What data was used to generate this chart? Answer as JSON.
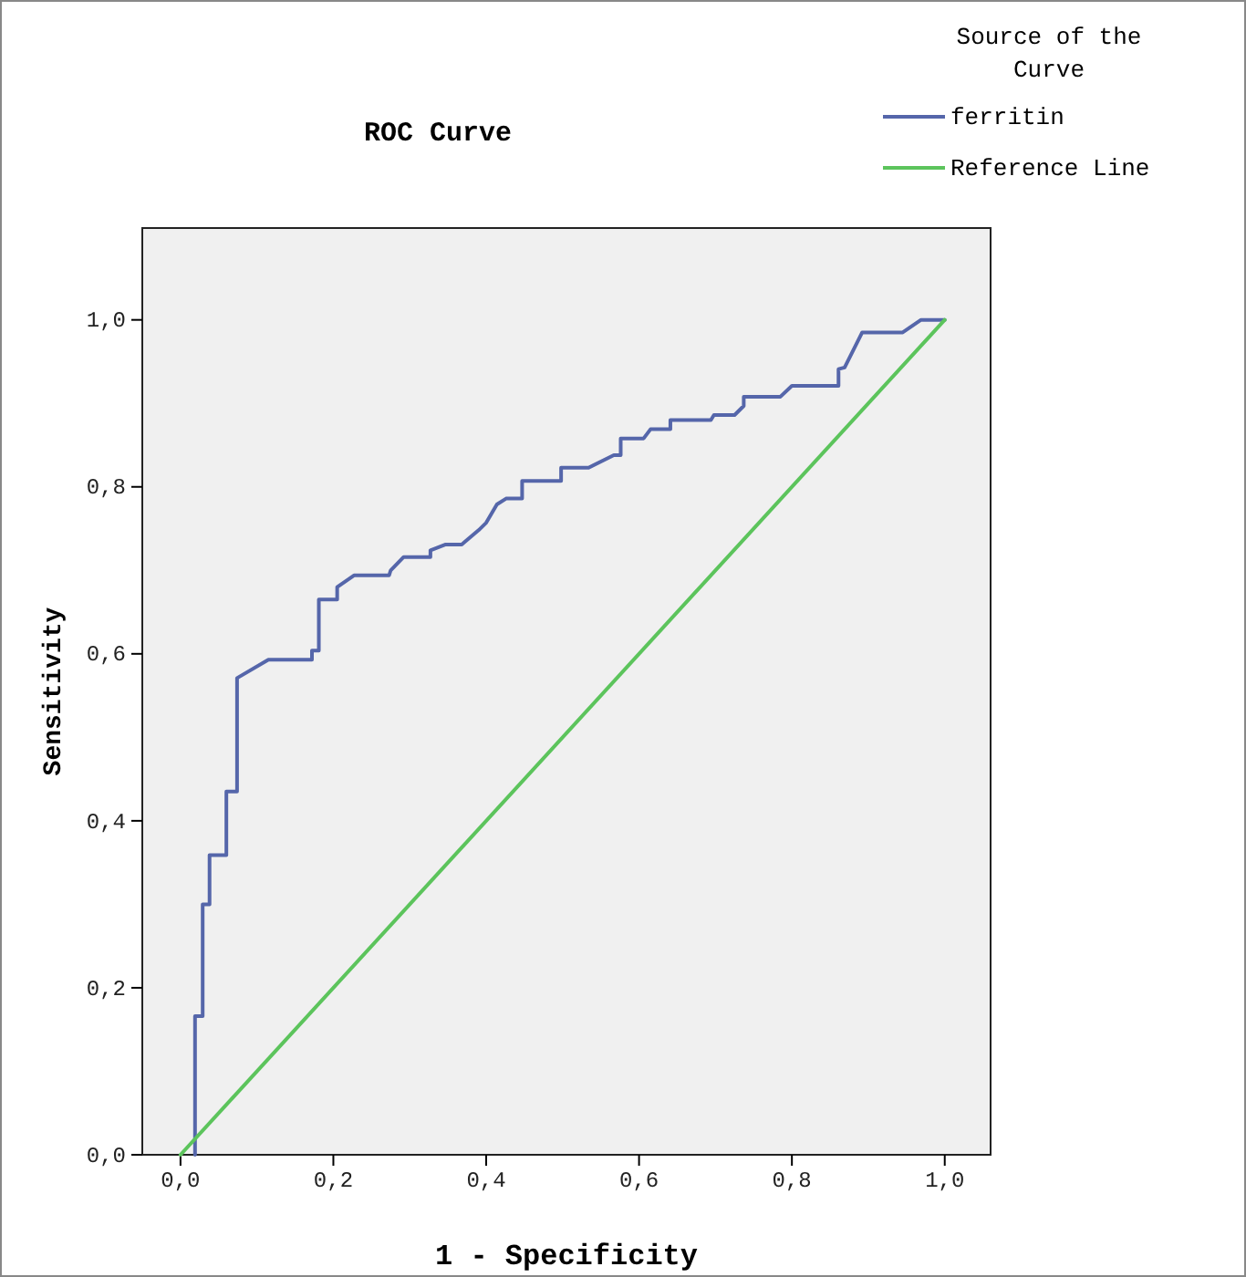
{
  "chart_data": {
    "type": "line",
    "title": "ROC Curve",
    "xlabel": "1 - Specificity",
    "ylabel": "Sensitivity",
    "legend_title": "Source of the Curve",
    "legend": "top right",
    "grid": false,
    "marker": "none",
    "line_style": "solid",
    "xlim": [
      -0.05,
      1.06
    ],
    "ylim": [
      0,
      1.11
    ],
    "xticks": [
      {
        "value": 0,
        "label": "0,0"
      },
      {
        "value": 0.2,
        "label": "0,2"
      },
      {
        "value": 0.4,
        "label": "0,4"
      },
      {
        "value": 0.6,
        "label": "0,6"
      },
      {
        "value": 0.8,
        "label": "0,8"
      },
      {
        "value": 1,
        "label": "1,0"
      }
    ],
    "yticks": [
      {
        "value": 0,
        "label": "0,0"
      },
      {
        "value": 0.2,
        "label": "0,2"
      },
      {
        "value": 0.4,
        "label": "0,4"
      },
      {
        "value": 0.6,
        "label": "0,6"
      },
      {
        "value": 0.8,
        "label": "0,8"
      },
      {
        "value": 1,
        "label": "1,0"
      }
    ],
    "series": [
      {
        "name": "ferritin",
        "color": "#5566aa",
        "x": [
          0.019,
          0.019,
          0.029,
          0.029,
          0.038,
          0.038,
          0.06,
          0.06,
          0.074,
          0.074,
          0.115,
          0.172,
          0.172,
          0.181,
          0.181,
          0.205,
          0.205,
          0.227,
          0.273,
          0.275,
          0.292,
          0.327,
          0.327,
          0.347,
          0.368,
          0.39,
          0.4,
          0.414,
          0.426,
          0.447,
          0.447,
          0.498,
          0.498,
          0.534,
          0.567,
          0.576,
          0.576,
          0.606,
          0.615,
          0.641,
          0.641,
          0.694,
          0.698,
          0.725,
          0.737,
          0.737,
          0.785,
          0.8,
          0.861,
          0.861,
          0.869,
          0.892,
          0.945,
          0.969,
          1.0
        ],
        "values": [
          0,
          0.166,
          0.166,
          0.3,
          0.3,
          0.359,
          0.359,
          0.435,
          0.435,
          0.571,
          0.593,
          0.593,
          0.604,
          0.604,
          0.665,
          0.665,
          0.68,
          0.694,
          0.694,
          0.7,
          0.716,
          0.716,
          0.724,
          0.731,
          0.731,
          0.748,
          0.757,
          0.779,
          0.786,
          0.786,
          0.807,
          0.807,
          0.823,
          0.823,
          0.838,
          0.838,
          0.858,
          0.858,
          0.869,
          0.869,
          0.88,
          0.88,
          0.886,
          0.886,
          0.897,
          0.908,
          0.908,
          0.921,
          0.921,
          0.941,
          0.943,
          0.985,
          0.985,
          1.0,
          1.0
        ]
      },
      {
        "name": "Reference Line",
        "color": "#5cc45c",
        "x": [
          0,
          1
        ],
        "values": [
          0,
          1
        ]
      }
    ]
  }
}
